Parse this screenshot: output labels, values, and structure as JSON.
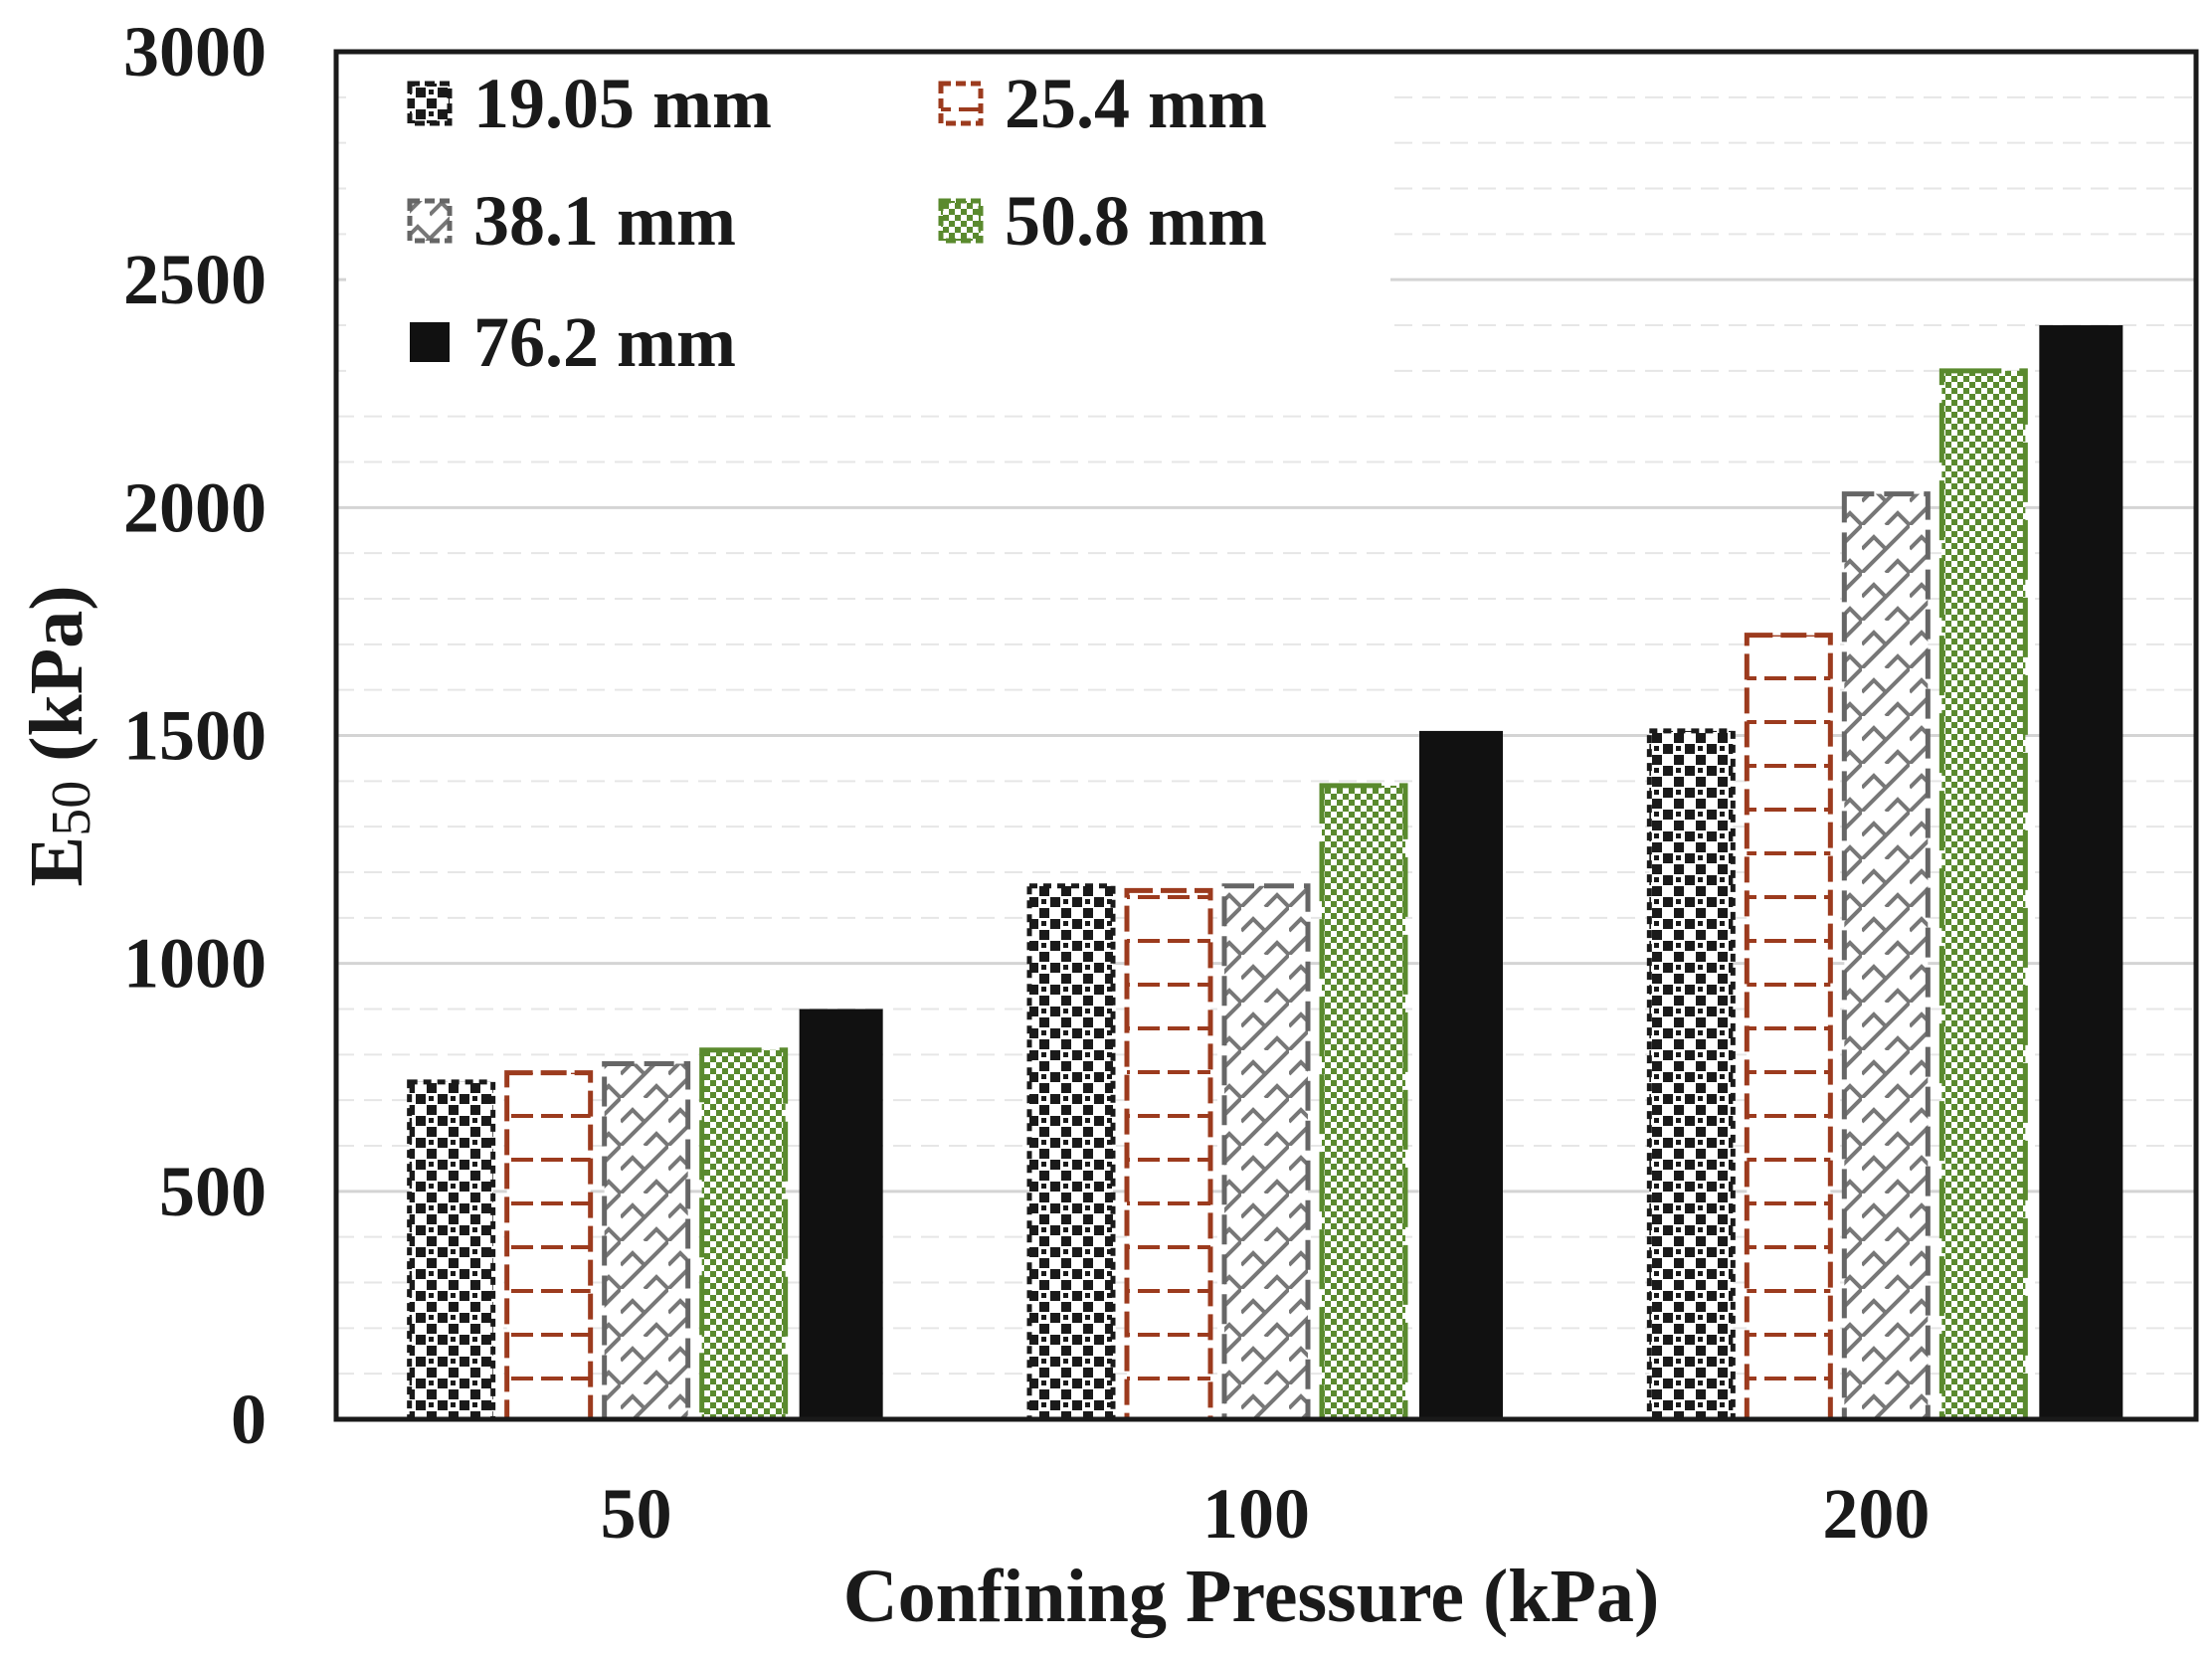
{
  "chart_data": {
    "type": "bar",
    "title": "",
    "xlabel": "Confining Pressure (kPa)",
    "ylabel": "E50 (kPa)",
    "ylabel_main": "E",
    "ylabel_sub": "50",
    "ylabel_unit": " (kPa)",
    "ylim": [
      0,
      3000
    ],
    "yticks": [
      0,
      500,
      1000,
      1500,
      2000,
      2500,
      3000
    ],
    "grid": true,
    "legend_position": "top-left",
    "categories": [
      "50",
      "100",
      "200"
    ],
    "series": [
      {
        "name": "19.05 mm",
        "values": [
          740,
          1170,
          1510
        ],
        "color": "#1a1a1a",
        "pattern": "checker-dots"
      },
      {
        "name": "25.4 mm",
        "values": [
          760,
          1160,
          1720
        ],
        "color": "#9c3b1e",
        "pattern": "dashed-brick"
      },
      {
        "name": "38.1 mm",
        "values": [
          780,
          1170,
          2030
        ],
        "color": "#666666",
        "pattern": "diagonal-lattice"
      },
      {
        "name": "50.8 mm",
        "values": [
          810,
          1390,
          2300
        ],
        "color": "#5a8a2e",
        "pattern": "checker-fine"
      },
      {
        "name": "76.2 mm",
        "values": [
          900,
          1510,
          2400
        ],
        "color": "#111111",
        "pattern": "solid"
      }
    ]
  }
}
